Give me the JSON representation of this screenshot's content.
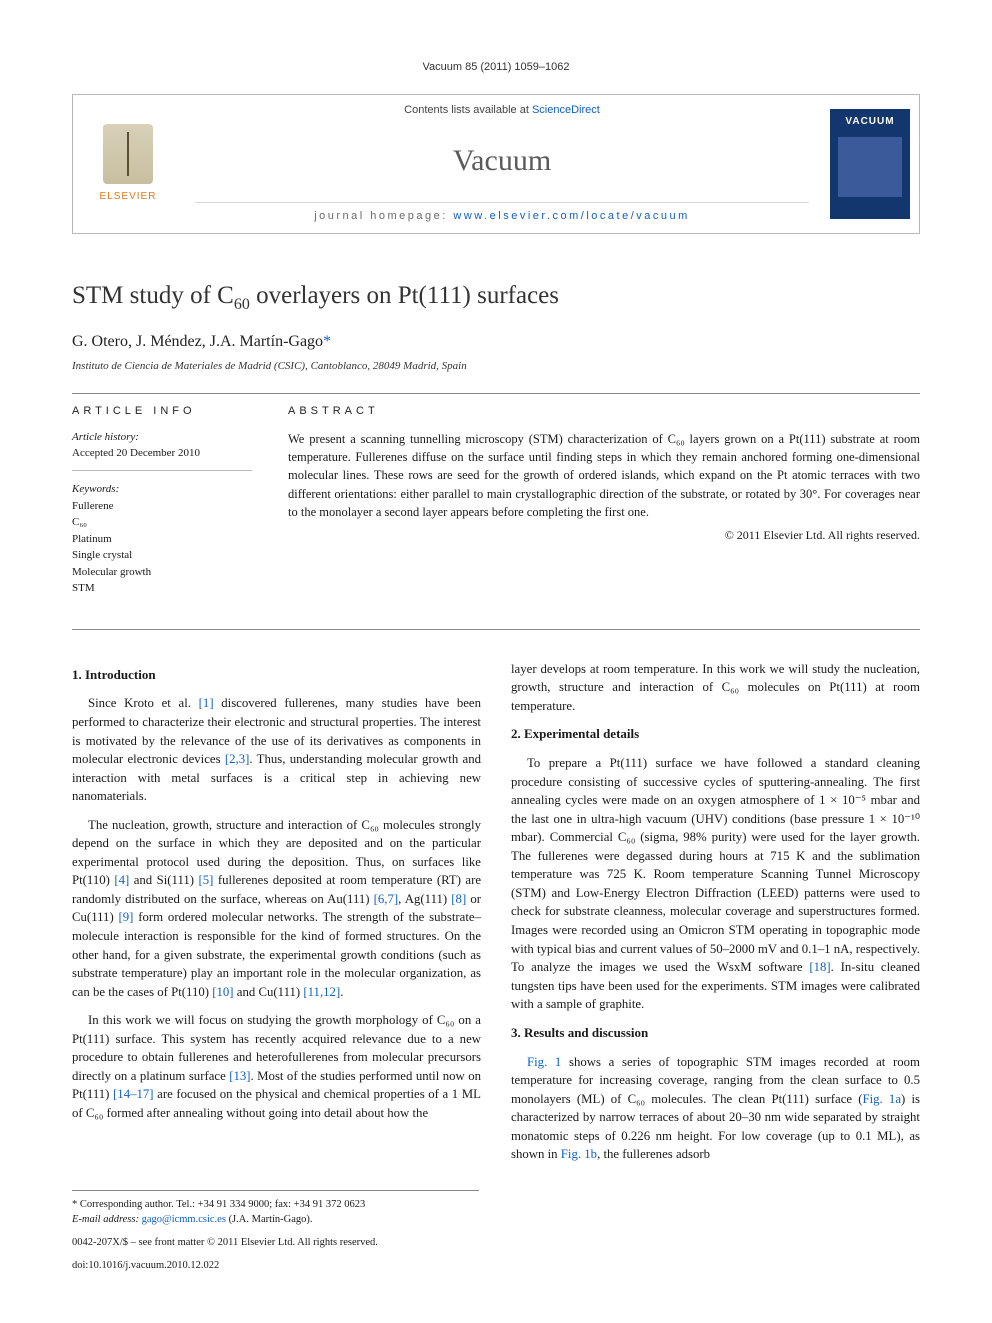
{
  "running_head": "Vacuum 85 (2011) 1059–1062",
  "masthead": {
    "contents_prefix": "Contents lists available at ",
    "contents_link": "ScienceDirect",
    "journal_name": "Vacuum",
    "homepage_prefix": "journal homepage: ",
    "homepage_url": "www.elsevier.com/locate/vacuum",
    "publisher_name": "ELSEVIER",
    "cover_label": "VACUUM"
  },
  "title_html": "STM study of C<sub>60</sub> overlayers on Pt(111) surfaces",
  "authors_html": "G. Otero, J. Méndez, J.A. Martín-Gago<a>*</a>",
  "affiliation": "Instituto de Ciencia de Materiales de Madrid (CSIC), Cantoblanco, 28049 Madrid, Spain",
  "article_info": {
    "heading": "ARTICLE INFO",
    "history_label": "Article history:",
    "history_value": "Accepted 20 December 2010",
    "keywords_label": "Keywords:",
    "keywords": [
      "Fullerene",
      "C₆₀",
      "Platinum",
      "Single crystal",
      "Molecular growth",
      "STM"
    ]
  },
  "abstract": {
    "heading": "ABSTRACT",
    "text": "We present a scanning tunnelling microscopy (STM) characterization of C₆₀ layers grown on a Pt(111) substrate at room temperature. Fullerenes diffuse on the surface until finding steps in which they remain anchored forming one-dimensional molecular lines. These rows are seed for the growth of ordered islands, which expand on the Pt atomic terraces with two different orientations: either parallel to main crystallographic direction of the substrate, or rotated by 30°. For coverages near to the monolayer a second layer appears before completing the first one.",
    "copyright": "© 2011 Elsevier Ltd. All rights reserved."
  },
  "sections": {
    "s1_heading": "1.  Introduction",
    "s1_p1": "Since Kroto et al. [1] discovered fullerenes, many studies have been performed to characterize their electronic and structural properties. The interest is motivated by the relevance of the use of its derivatives as components in molecular electronic devices [2,3]. Thus, understanding molecular growth and interaction with metal surfaces is a critical step in achieving new nanomaterials.",
    "s1_p2": "The nucleation, growth, structure and interaction of C₆₀ molecules strongly depend on the surface in which they are deposited and on the particular experimental protocol used during the deposition. Thus, on surfaces like Pt(110) [4] and Si(111) [5] fullerenes deposited at room temperature (RT) are randomly distributed on the surface, whereas on Au(111) [6,7], Ag(111) [8] or Cu(111) [9] form ordered molecular networks. The strength of the substrate–molecule interaction is responsible for the kind of formed structures. On the other hand, for a given substrate, the experimental growth conditions (such as substrate temperature) play an important role in the molecular organization, as can be the cases of Pt(110) [10] and Cu(111) [11,12].",
    "s1_p3": "In this work we will focus on studying the growth morphology of C₆₀ on a Pt(111) surface. This system has recently acquired relevance due to a new procedure to obtain fullerenes and heterofullerenes from molecular precursors directly on a platinum surface [13]. Most of the studies performed until now on Pt(111) [14–17] are focused on the physical and chemical properties of a 1 ML of C₆₀ formed after annealing without going into detail about how the",
    "s1_p4": "layer develops at room temperature. In this work we will study the nucleation, growth, structure and interaction of C₆₀ molecules on Pt(111) at room temperature.",
    "s2_heading": "2.  Experimental details",
    "s2_p1": "To prepare a Pt(111) surface we have followed a standard cleaning procedure consisting of successive cycles of sputtering-annealing. The first annealing cycles were made on an oxygen atmosphere of 1 × 10⁻⁵ mbar and the last one in ultra-high vacuum (UHV) conditions (base pressure 1 × 10⁻¹⁰ mbar). Commercial C₆₀ (sigma, 98% purity) were used for the layer growth. The fullerenes were degassed during hours at 715 K and the sublimation temperature was 725 K. Room temperature Scanning Tunnel Microscopy (STM) and Low-Energy Electron Diffraction (LEED) patterns were used to check for substrate cleanness, molecular coverage and superstructures formed. Images were recorded using an Omicron STM operating in topographic mode with typical bias and current values of 50–2000 mV and 0.1–1 nA, respectively. To analyze the images we used the WsxM software [18]. In-situ cleaned tungsten tips have been used for the experiments. STM images were calibrated with a sample of graphite.",
    "s3_heading": "3.  Results and discussion",
    "s3_p1": "Fig. 1 shows a series of topographic STM images recorded at room temperature for increasing coverage, ranging from the clean surface to 0.5 monolayers (ML) of C₆₀ molecules. The clean Pt(111) surface (Fig. 1a) is characterized by narrow terraces of about 20–30 nm wide separated by straight monatomic steps of 0.226 nm height. For low coverage (up to 0.1 ML), as shown in Fig. 1b, the fullerenes adsorb"
  },
  "footnotes": {
    "corr_label": "* Corresponding author. Tel.: +34 91 334 9000; fax: +34 91 372 0623",
    "email_label": "E-mail address: ",
    "email": "gago@icmm.csic.es",
    "email_suffix": " (J.A. Martín-Gago).",
    "front_matter": "0042-207X/$ – see front matter © 2011 Elsevier Ltd. All rights reserved.",
    "doi": "doi:10.1016/j.vacuum.2010.12.022"
  },
  "colors": {
    "link": "#1060c0",
    "rule": "#888888",
    "text": "#1a1a1a",
    "muted": "#5a5a5a",
    "elsevier_orange": "#e67817",
    "cover_blue": "#14366e"
  }
}
